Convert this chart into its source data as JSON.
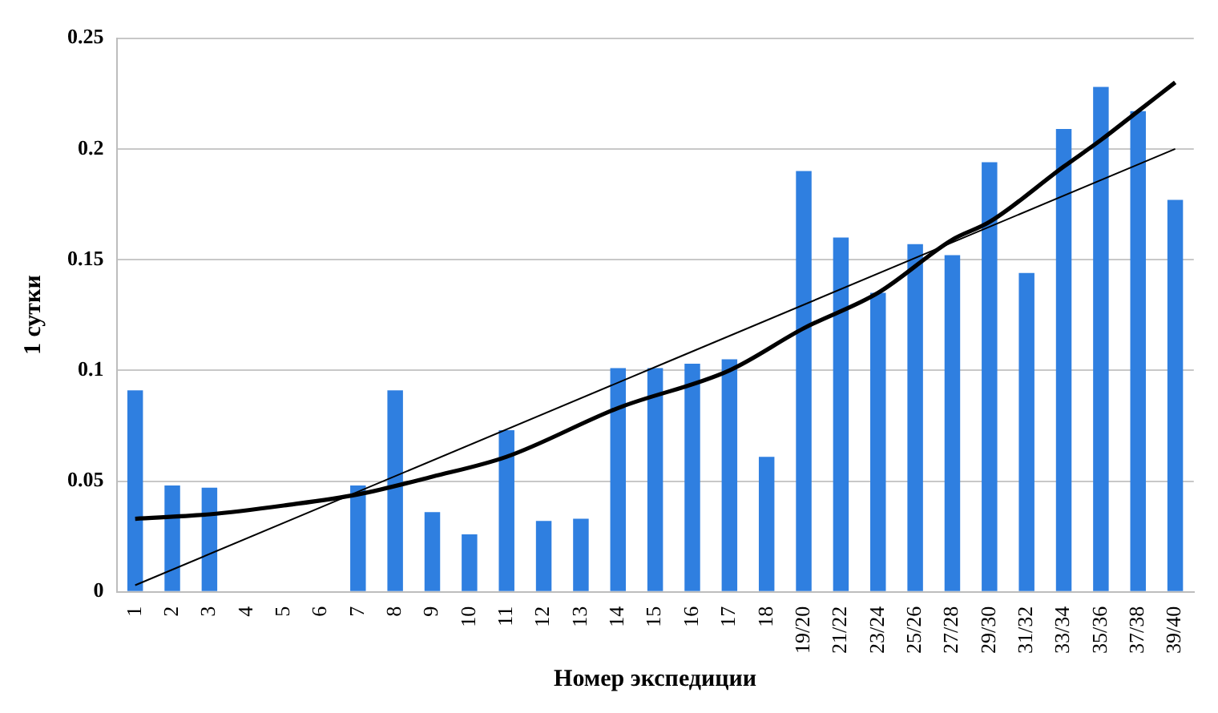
{
  "chart_data": {
    "type": "bar",
    "xlabel": "Номер экспедиции",
    "ylabel": "1 сутки",
    "categories": [
      "1",
      "2",
      "3",
      "4",
      "5",
      "6",
      "7",
      "8",
      "9",
      "10",
      "11",
      "12",
      "13",
      "14",
      "15",
      "16",
      "17",
      "18",
      "19/20",
      "21/22",
      "23/24",
      "25/26",
      "27/28",
      "29/30",
      "31/32",
      "33/34",
      "35/36",
      "37/38",
      "39/40"
    ],
    "ylim": [
      0,
      0.25
    ],
    "yticks": [
      0,
      0.05,
      0.1,
      0.15,
      0.2,
      0.25
    ],
    "grid": "y",
    "legend": false,
    "marker": "none",
    "series": [
      {
        "color": "#2f7fe0",
        "values": [
          0.091,
          0.048,
          0.047,
          0,
          0,
          0,
          0.048,
          0.091,
          0.036,
          0.026,
          0.073,
          0.032,
          0.033,
          0.101,
          0.101,
          0.103,
          0.105,
          0.061,
          0.19,
          0.16,
          0.135,
          0.157,
          0.152,
          0.194,
          0.144,
          0.209,
          0.228,
          0.217,
          0.177
        ]
      },
      {
        "type": "line",
        "color": "#000000",
        "values": [
          0.003,
          null,
          null,
          null,
          null,
          null,
          null,
          null,
          null,
          null,
          null,
          null,
          null,
          null,
          null,
          null,
          null,
          null,
          null,
          null,
          null,
          null,
          null,
          null,
          null,
          null,
          null,
          null,
          0.2
        ]
      },
      {
        "type": "line",
        "color": "#000000",
        "values": [
          0.033,
          null,
          0.035,
          null,
          0.039,
          null,
          0.044,
          null,
          0.052,
          null,
          0.061,
          null,
          null,
          0.083,
          null,
          null,
          0.1,
          null,
          0.119,
          null,
          0.135,
          null,
          0.159,
          0.167,
          null,
          0.192,
          0.204,
          0.217,
          0.23
        ]
      }
    ]
  }
}
